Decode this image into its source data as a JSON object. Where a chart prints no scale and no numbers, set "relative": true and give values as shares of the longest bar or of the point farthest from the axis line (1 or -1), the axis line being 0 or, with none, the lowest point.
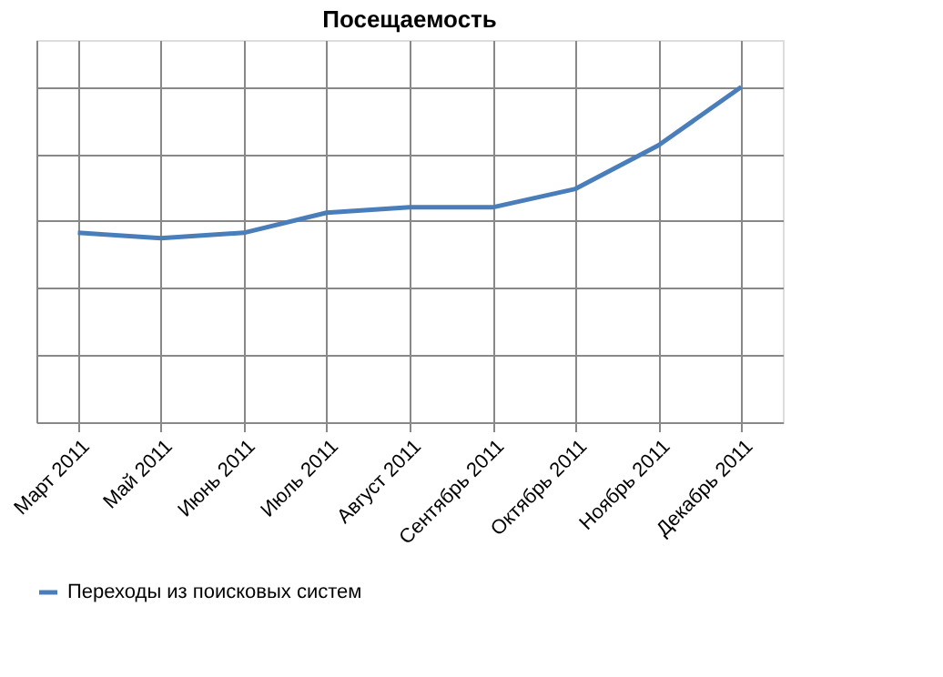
{
  "chart_data": {
    "type": "line",
    "title": "Посещаемость",
    "categories": [
      "Март 2011",
      "Май 2011",
      "Июнь 2011",
      "Июль 2011",
      "Август 2011",
      "Сентябрь 2011",
      "Октябрь 2011",
      "Ноябрь 2011",
      "Декабрь 2011"
    ],
    "series": [
      {
        "name": "Переходы из поисковых систем",
        "color": "#4a7ebb",
        "values": [
          0.565,
          0.549,
          0.565,
          0.625,
          0.641,
          0.641,
          0.696,
          0.826,
          1.0
        ]
      }
    ],
    "relative": true,
    "grid": true,
    "legend": "bottom",
    "marker": "none",
    "line_style": "solid"
  }
}
